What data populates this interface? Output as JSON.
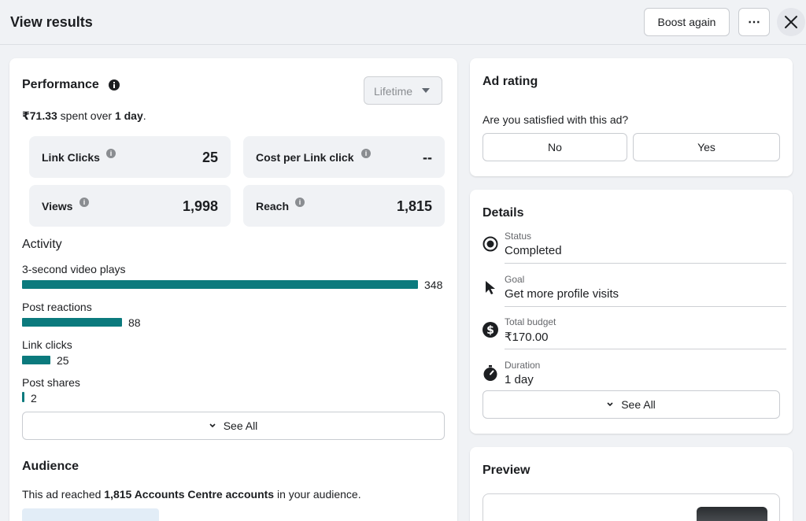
{
  "header": {
    "title": "View results",
    "boost_label": "Boost again",
    "more_label": "⋯"
  },
  "performance": {
    "title": "Performance",
    "dropdown_value": "Lifetime",
    "spent_amount": "₹71.33",
    "spent_mid": " spent over ",
    "spent_duration": "1 day",
    "spent_end": ".",
    "stats": [
      {
        "label": "Link Clicks",
        "value": "25"
      },
      {
        "label": "Cost per Link click",
        "value": "--"
      },
      {
        "label": "Views",
        "value": "1,998"
      },
      {
        "label": "Reach",
        "value": "1,815"
      }
    ]
  },
  "activity": {
    "title": "Activity",
    "items": [
      {
        "label": "3-second video plays",
        "value": 348
      },
      {
        "label": "Post reactions",
        "value": 88
      },
      {
        "label": "Link clicks",
        "value": 25
      },
      {
        "label": "Post shares",
        "value": 2
      }
    ],
    "see_all_label": "See All",
    "bar_color": "#0b7a7d"
  },
  "audience": {
    "title": "Audience",
    "text_start": "This ad reached ",
    "text_bold": "1,815 Accounts Centre accounts",
    "text_end": " in your audience."
  },
  "ad_rating": {
    "title": "Ad rating",
    "question": "Are you satisfied with this ad?",
    "no_label": "No",
    "yes_label": "Yes"
  },
  "details": {
    "title": "Details",
    "rows": [
      {
        "label": "Status",
        "value": "Completed",
        "icon": "status-radio-icon"
      },
      {
        "label": "Goal",
        "value": "Get more profile visits",
        "icon": "cursor-icon"
      },
      {
        "label": "Total budget",
        "value": "₹170.00",
        "icon": "dollar-icon"
      },
      {
        "label": "Duration",
        "value": "1 day",
        "icon": "stopwatch-icon"
      }
    ],
    "see_all_label": "See All"
  },
  "preview": {
    "title": "Preview"
  }
}
